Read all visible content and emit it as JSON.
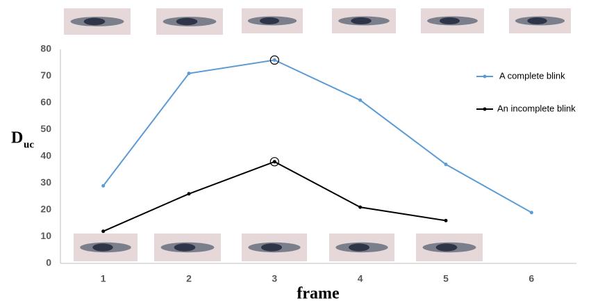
{
  "chart_data": {
    "type": "line",
    "categories": [
      "1",
      "2",
      "3",
      "4",
      "5",
      "6"
    ],
    "series": [
      {
        "name": "A complete blink",
        "color": "#5b9bd5",
        "values": [
          29,
          71,
          76,
          61,
          37,
          19
        ]
      },
      {
        "name": "An incomplete blink",
        "color": "#000000",
        "values": [
          12,
          26,
          38,
          21,
          16,
          null
        ]
      }
    ],
    "ylim": [
      0,
      80
    ],
    "yticks": [
      0,
      10,
      20,
      30,
      40,
      50,
      60,
      70,
      80
    ],
    "x_label": "frame",
    "y_label": "D",
    "y_label_sub": "uc",
    "grid": false,
    "legend": "right"
  }
}
